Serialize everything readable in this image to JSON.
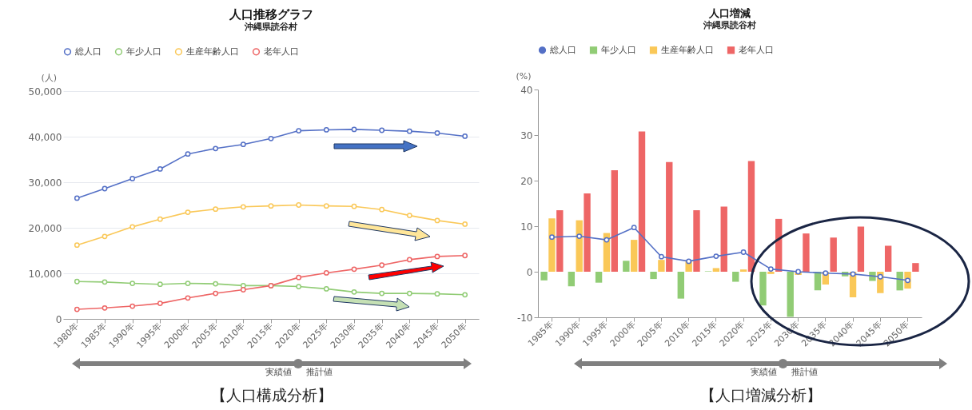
{
  "chart_data": [
    {
      "type": "line",
      "title": "人口推移グラフ",
      "subtitle": "沖縄県読谷村",
      "ylabel": "(人)",
      "categories": [
        "1980年",
        "1985年",
        "1990年",
        "1995年",
        "2000年",
        "2005年",
        "2010年",
        "2015年",
        "2020年",
        "2025年",
        "2030年",
        "2035年",
        "2040年",
        "2045年",
        "2050年"
      ],
      "series": [
        {
          "name": "総人口",
          "color": "#5470c6",
          "values": [
            26500,
            28600,
            30800,
            32900,
            36200,
            37400,
            38300,
            39600,
            41300,
            41500,
            41600,
            41400,
            41200,
            40800,
            40100
          ]
        },
        {
          "name": "年少人口",
          "color": "#91cc75",
          "values": [
            8200,
            8100,
            7800,
            7600,
            7800,
            7700,
            7300,
            7300,
            7100,
            6600,
            5900,
            5600,
            5600,
            5500,
            5300
          ]
        },
        {
          "name": "生産年齢人口",
          "color": "#fac858",
          "values": [
            16200,
            18100,
            20200,
            21900,
            23400,
            24100,
            24600,
            24800,
            25000,
            24800,
            24700,
            24000,
            22700,
            21600,
            20800
          ]
        },
        {
          "name": "老年人口",
          "color": "#ee6666",
          "values": [
            2100,
            2400,
            2800,
            3400,
            4600,
            5600,
            6400,
            7300,
            9100,
            10100,
            10900,
            11800,
            13000,
            13700,
            13900
          ]
        }
      ],
      "ylim": [
        0,
        50000
      ],
      "yticks": [
        0,
        {
          "value": 10000,
          "label": "10,000"
        },
        {
          "value": 20000,
          "label": "20,000"
        },
        {
          "value": 30000,
          "label": "30,000"
        },
        {
          "value": 40000,
          "label": "40,000"
        },
        {
          "value": 50000,
          "label": "50,000"
        }
      ],
      "grid": "y",
      "legend": "top",
      "marker": "circle",
      "annotations": [
        "実績値",
        "推計値",
        "【人口構成分析】"
      ]
    },
    {
      "type": "bar",
      "title": "人口増減",
      "subtitle": "沖縄県読谷村",
      "ylabel": "(%)",
      "categories": [
        "1985年",
        "1990年",
        "1995年",
        "2000年",
        "2005年",
        "2010年",
        "2015年",
        "2020年",
        "2025年",
        "2030年",
        "2035年",
        "2040年",
        "2045年",
        "2050年"
      ],
      "series": [
        {
          "name": "総人口",
          "type": "line",
          "color": "#5470c6",
          "values": [
            7.6,
            7.8,
            7.0,
            9.7,
            3.3,
            2.3,
            3.4,
            4.3,
            0.6,
            0,
            -0.3,
            -0.5,
            -1.1,
            -1.9
          ]
        },
        {
          "name": "年少人口",
          "color": "#91cc75",
          "values": [
            -1.9,
            -3.2,
            -2.4,
            2.4,
            -1.6,
            -5.9,
            0.1,
            -2.2,
            -7.4,
            -9.9,
            -4.1,
            -1.0,
            -2.0,
            -4.1
          ]
        },
        {
          "name": "生産年齢人口",
          "color": "#fac858",
          "values": [
            11.7,
            11.3,
            8.5,
            7.0,
            2.6,
            2.5,
            0.8,
            0.5,
            -0.5,
            -0.7,
            -2.8,
            -5.6,
            -4.7,
            -3.7
          ]
        },
        {
          "name": "老年人口",
          "color": "#ee6666",
          "values": [
            13.5,
            17.2,
            22.3,
            30.8,
            24.1,
            13.5,
            14.3,
            24.3,
            11.6,
            8.4,
            7.5,
            9.9,
            5.7,
            1.9
          ]
        }
      ],
      "ylim": [
        -10,
        40
      ],
      "yticks": [
        -10,
        0,
        10,
        20,
        30,
        40
      ],
      "legend": "top",
      "marker": "circle",
      "annotations": [
        "実績値",
        "推計値",
        "【人口増減分析】"
      ]
    }
  ]
}
